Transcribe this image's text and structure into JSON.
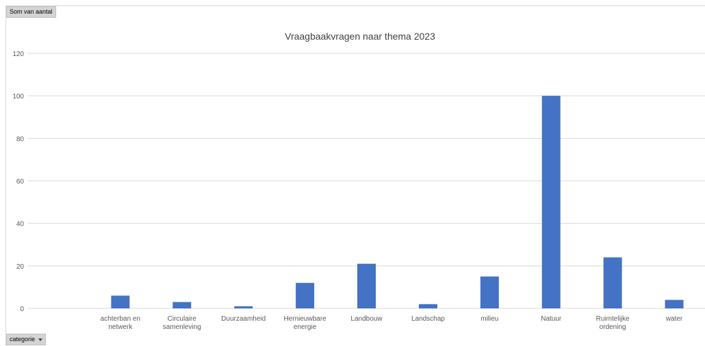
{
  "field_buttons": {
    "value_field": "Som van aantal",
    "axis_field": "categorie"
  },
  "chart_data": {
    "type": "bar",
    "title": "Vraagbaakvragen naar thema 2023",
    "xlabel": "",
    "ylabel": "",
    "ylim": [
      0,
      120
    ],
    "y_ticks": [
      0,
      20,
      40,
      60,
      80,
      100,
      120
    ],
    "grid": true,
    "categories": [
      "",
      [
        "achterban en",
        "netwerk"
      ],
      [
        "Circulaire",
        "samenleving"
      ],
      [
        "Duurzaamheid"
      ],
      [
        "Hernieuwbare",
        "energie"
      ],
      [
        "Landbouw"
      ],
      [
        "Landschap"
      ],
      [
        "milieu"
      ],
      [
        "Natuur"
      ],
      [
        "Ruimtelijke",
        "ordening"
      ],
      [
        "water"
      ]
    ],
    "series": [
      {
        "values": [
          null,
          6,
          3,
          1,
          12,
          21,
          2,
          15,
          100,
          24,
          4
        ]
      }
    ],
    "bar_color": "#4472c4",
    "grid_color": "#d9d9d9"
  }
}
